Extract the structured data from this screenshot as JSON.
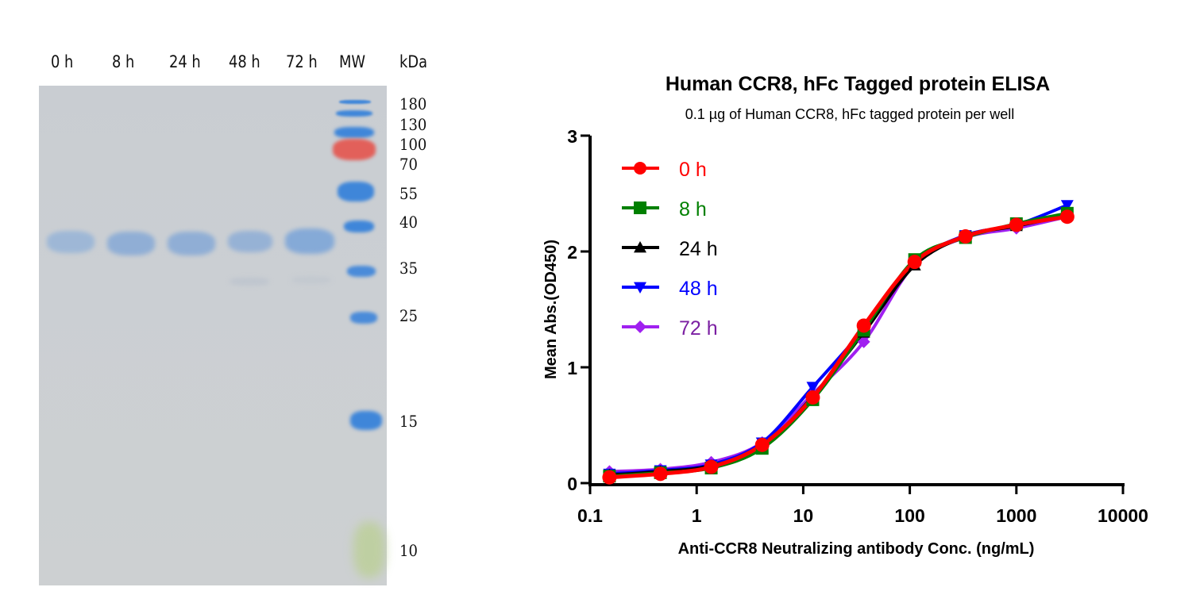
{
  "gel": {
    "lane_labels": [
      "0 h",
      "8 h",
      "24 h",
      "48 h",
      "72 h",
      "MW"
    ],
    "unit_label": "kDa",
    "marker_sizes": [
      "180",
      "130",
      "100",
      "70",
      "55",
      "40",
      "35",
      "25",
      "15",
      "10"
    ],
    "colors": {
      "background": "#cbcfd3",
      "band": "#7fa6d8",
      "marker_blue": "#3f86d9",
      "marker_red": "#e2605a",
      "marker_green": "#b9cf8e"
    }
  },
  "chart_data": {
    "type": "line",
    "title": "Human CCR8, hFc Tagged protein ELISA",
    "subtitle": "0.1 µg of Human CCR8, hFc tagged protein per well",
    "xlabel": "Anti-CCR8 Neutralizing antibody Conc. (ng/mL)",
    "ylabel": "Mean Abs.(OD450)",
    "xscale": "log",
    "xlim": [
      0.1,
      10000
    ],
    "ylim": [
      0,
      3
    ],
    "x_ticks": [
      "0.1",
      "1",
      "10",
      "100",
      "1000",
      "10000"
    ],
    "y_ticks": [
      "0",
      "1",
      "2",
      "3"
    ],
    "legend_position": "top-left",
    "grid": false,
    "x": [
      0.152,
      0.457,
      1.37,
      4.12,
      12.3,
      37.0,
      111,
      333,
      1000,
      3000
    ],
    "series": [
      {
        "name": "0 h",
        "color": "#ff0000",
        "marker": "circle",
        "values": [
          0.05,
          0.08,
          0.14,
          0.33,
          0.74,
          1.36,
          1.91,
          2.13,
          2.23,
          2.3
        ]
      },
      {
        "name": "8 h",
        "color": "#008000",
        "marker": "square",
        "values": [
          0.06,
          0.09,
          0.13,
          0.3,
          0.72,
          1.32,
          1.93,
          2.12,
          2.24,
          2.33
        ]
      },
      {
        "name": "24 h",
        "color": "#000000",
        "marker": "triangle-up",
        "values": [
          0.07,
          0.1,
          0.15,
          0.31,
          0.75,
          1.3,
          1.88,
          2.13,
          2.22,
          2.31
        ]
      },
      {
        "name": "48 h",
        "color": "#0000ff",
        "marker": "triangle-down",
        "values": [
          0.08,
          0.11,
          0.16,
          0.35,
          0.83,
          1.33,
          1.9,
          2.14,
          2.23,
          2.4
        ]
      },
      {
        "name": "72 h",
        "color": "#a020f0",
        "marker": "diamond",
        "values": [
          0.1,
          0.12,
          0.18,
          0.35,
          0.77,
          1.22,
          1.89,
          2.12,
          2.2,
          2.3
        ]
      }
    ],
    "legend_text_colors": [
      "#ff0000",
      "#008000",
      "#000000",
      "#0000ff",
      "#7b1fa2"
    ]
  }
}
